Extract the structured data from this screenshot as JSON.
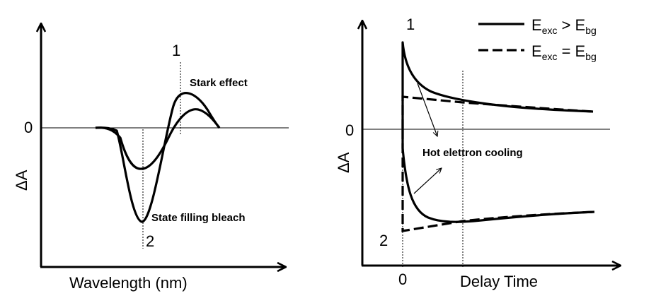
{
  "left_panel": {
    "y_axis_label": "ΔA",
    "x_axis_label": "Wavelength (nm)",
    "zero_label": "0",
    "marker_1": "1",
    "marker_2": "2",
    "annotation_stark": "Stark effect",
    "annotation_bleach": "State filling bleach"
  },
  "right_panel": {
    "y_axis_label": "ΔA",
    "x_axis_label": "Delay Time",
    "zero_label_y": "0",
    "zero_label_x": "0",
    "marker_1": "1",
    "marker_2": "2",
    "annotation_cooling": "Hot elettron cooling",
    "legend": {
      "solid": {
        "main": "E",
        "sub1": "exc",
        "op": " > E",
        "sub2": "bg"
      },
      "dashed": {
        "main": "E",
        "sub1": "exc",
        "op": " = E",
        "sub2": "bg"
      }
    }
  },
  "colors": {
    "ink": "#000000",
    "background": "#ffffff"
  }
}
